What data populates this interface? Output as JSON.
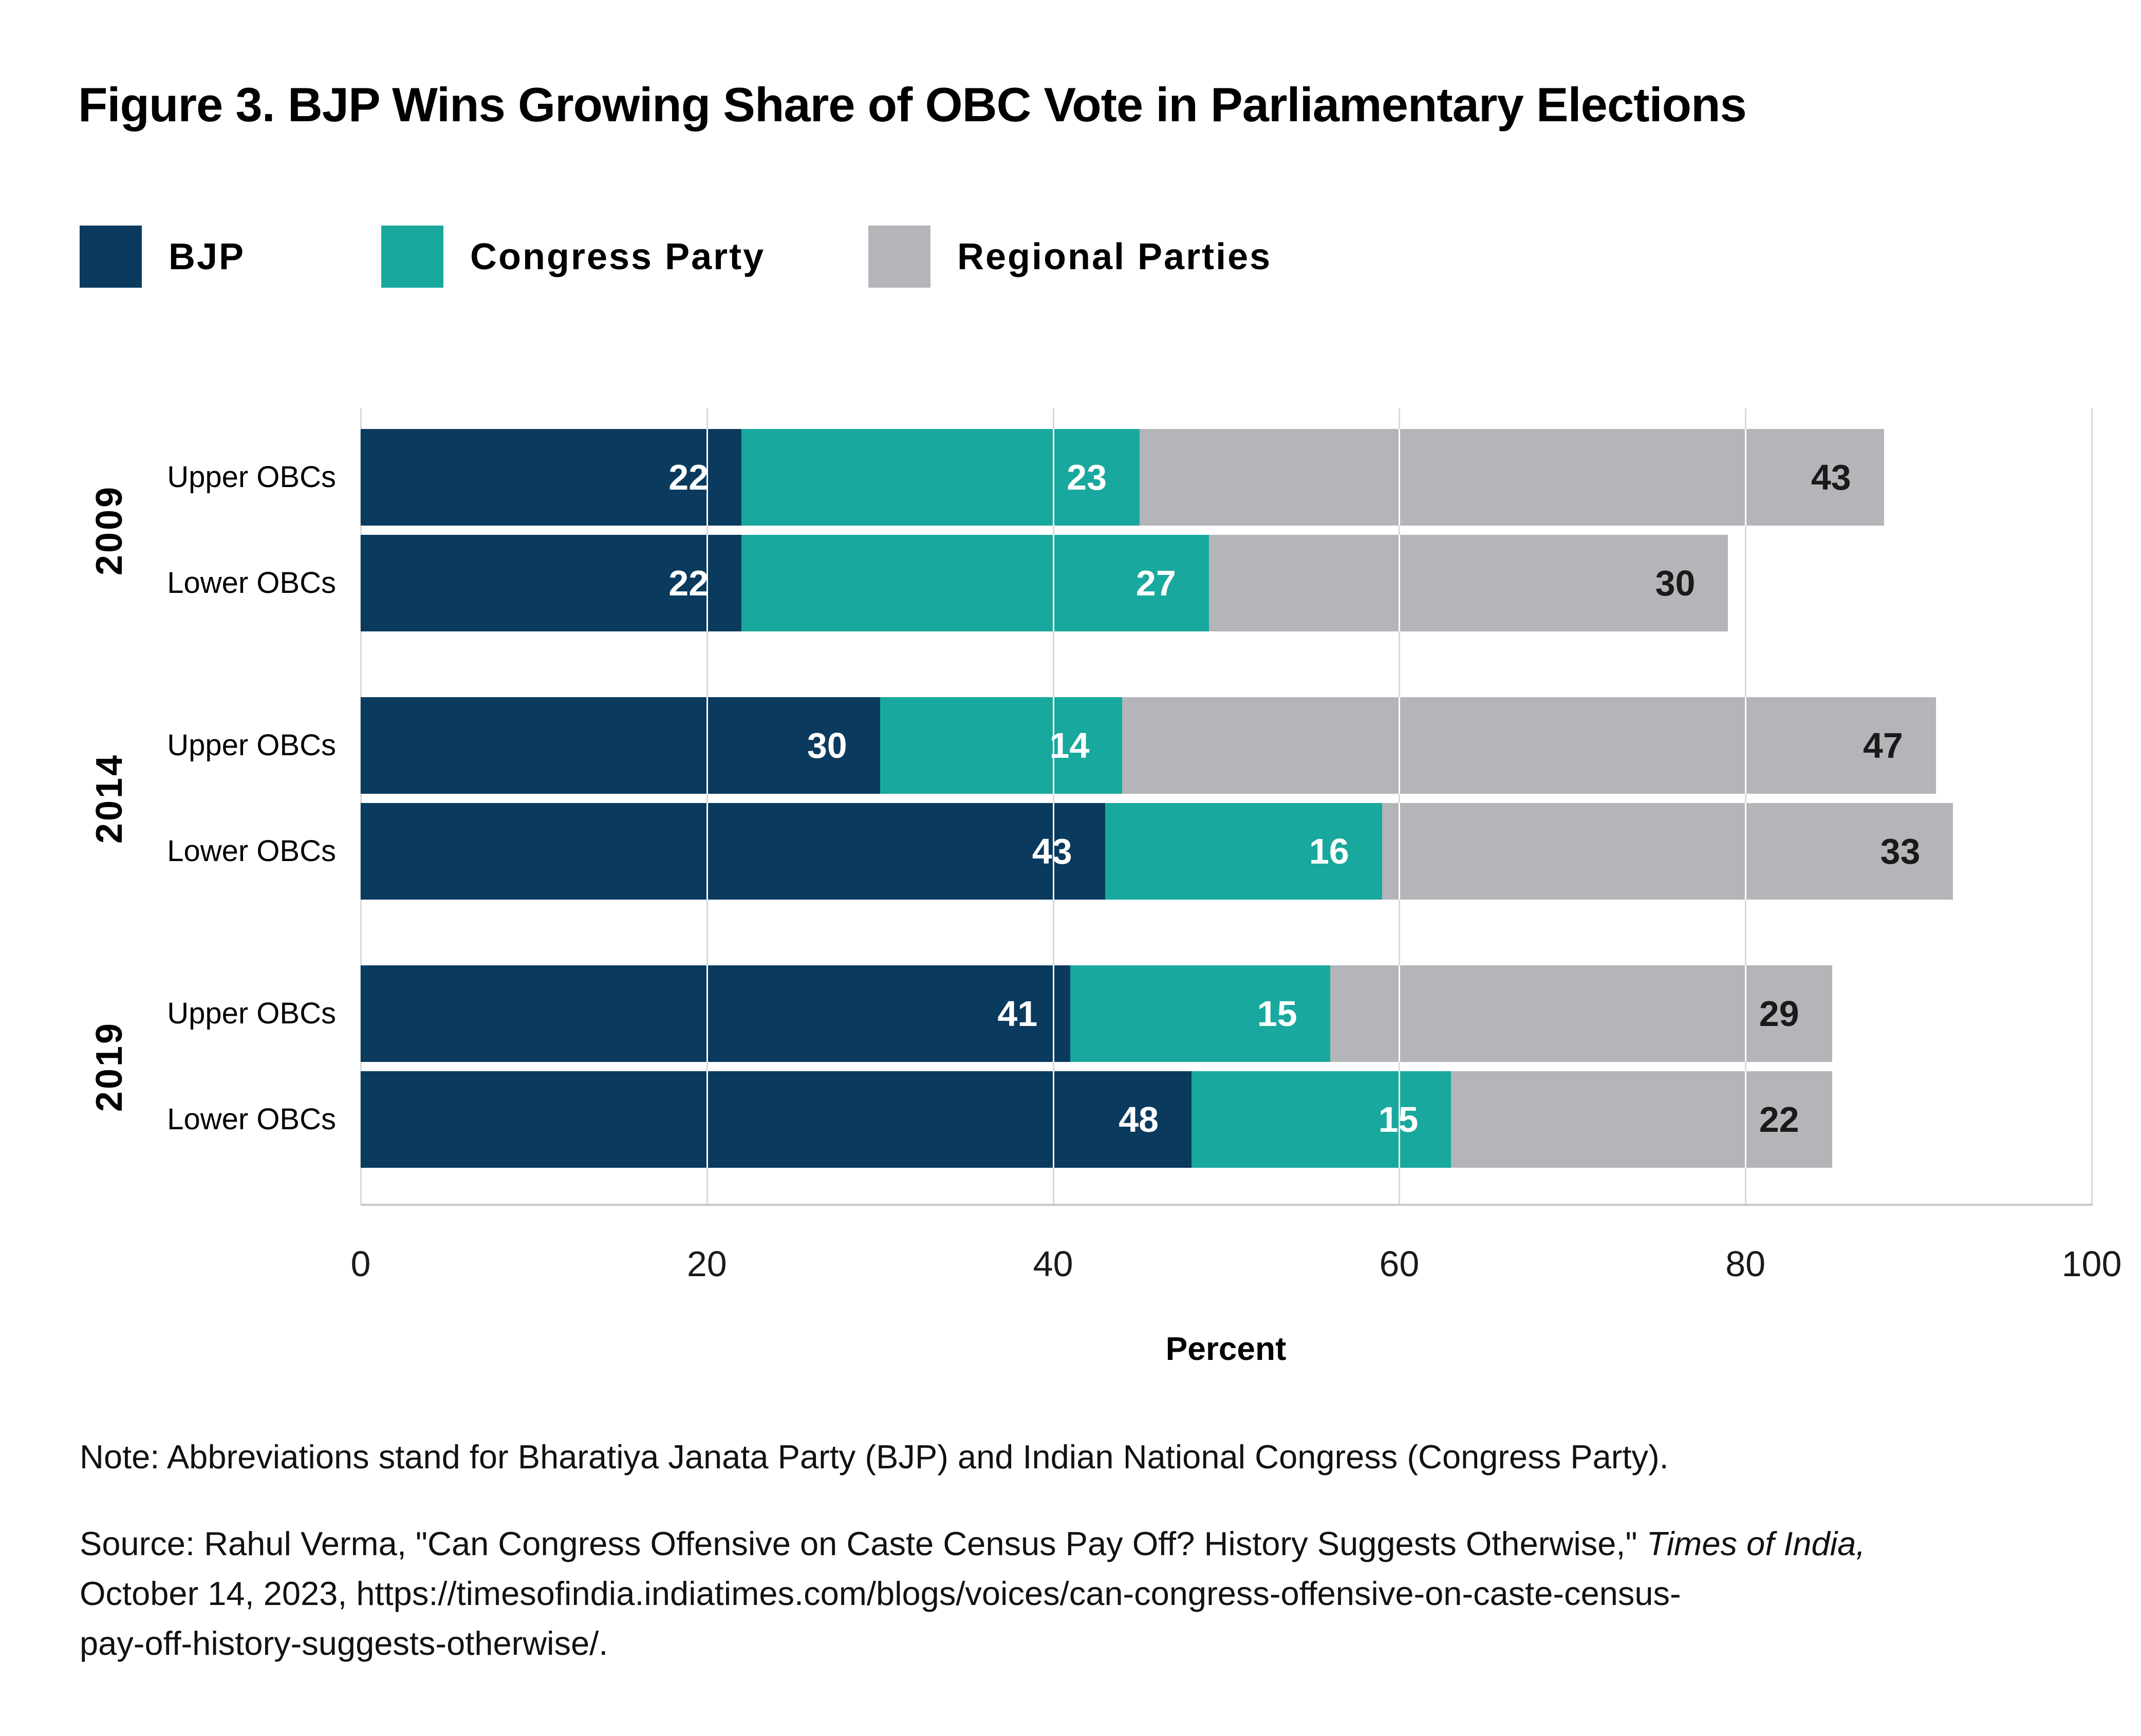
{
  "title": "Figure 3. BJP Wins Growing Share of OBC Vote in Parliamentary Elections",
  "note": "Note: Abbreviations stand for Bharatiya Janata Party (BJP) and Indian National Congress (Congress Party).",
  "source": {
    "line1_regular": "Source: Rahul Verma, \"Can Congress Offensive on Caste Census Pay Off? History Suggests Otherwise,\" ",
    "line1_italic": "Times of India,",
    "line2": "October 14, 2023, https://timesofindia.indiatimes.com/blogs/voices/can-congress-offensive-on-caste-census-",
    "line3": "pay-off-history-suggests-otherwise/."
  },
  "chart_data": {
    "type": "bar",
    "orientation": "horizontal-stacked",
    "title": "Figure 3. BJP Wins Growing Share of OBC Vote in Parliamentary Elections",
    "xlabel": "Percent",
    "xlim": [
      0,
      100
    ],
    "xticks": [
      "0",
      "20",
      "40",
      "60",
      "80",
      "100"
    ],
    "grid": "vertical",
    "legend_position": "top-left",
    "series": [
      {
        "name": "BJP",
        "color": "#0A3A5E",
        "label_color": "#FFFFFF"
      },
      {
        "name": "Congress Party",
        "color": "#19A89D",
        "label_color": "#FFFFFF"
      },
      {
        "name": "Regional Parties",
        "color": "#B4B5B8",
        "label_color": "#1A1A1A"
      }
    ],
    "groups": [
      {
        "year": "2009",
        "rows": [
          {
            "label": "Upper OBCs",
            "values": [
              22,
              23,
              43
            ]
          },
          {
            "label": "Lower OBCs",
            "values": [
              22,
              27,
              30
            ]
          }
        ]
      },
      {
        "year": "2014",
        "rows": [
          {
            "label": "Upper OBCs",
            "values": [
              30,
              14,
              47
            ]
          },
          {
            "label": "Lower OBCs",
            "values": [
              43,
              16,
              33
            ]
          }
        ]
      },
      {
        "year": "2019",
        "rows": [
          {
            "label": "Upper OBCs",
            "values": [
              41,
              15,
              29
            ]
          },
          {
            "label": "Lower OBCs",
            "values": [
              48,
              15,
              22
            ]
          }
        ]
      }
    ]
  }
}
